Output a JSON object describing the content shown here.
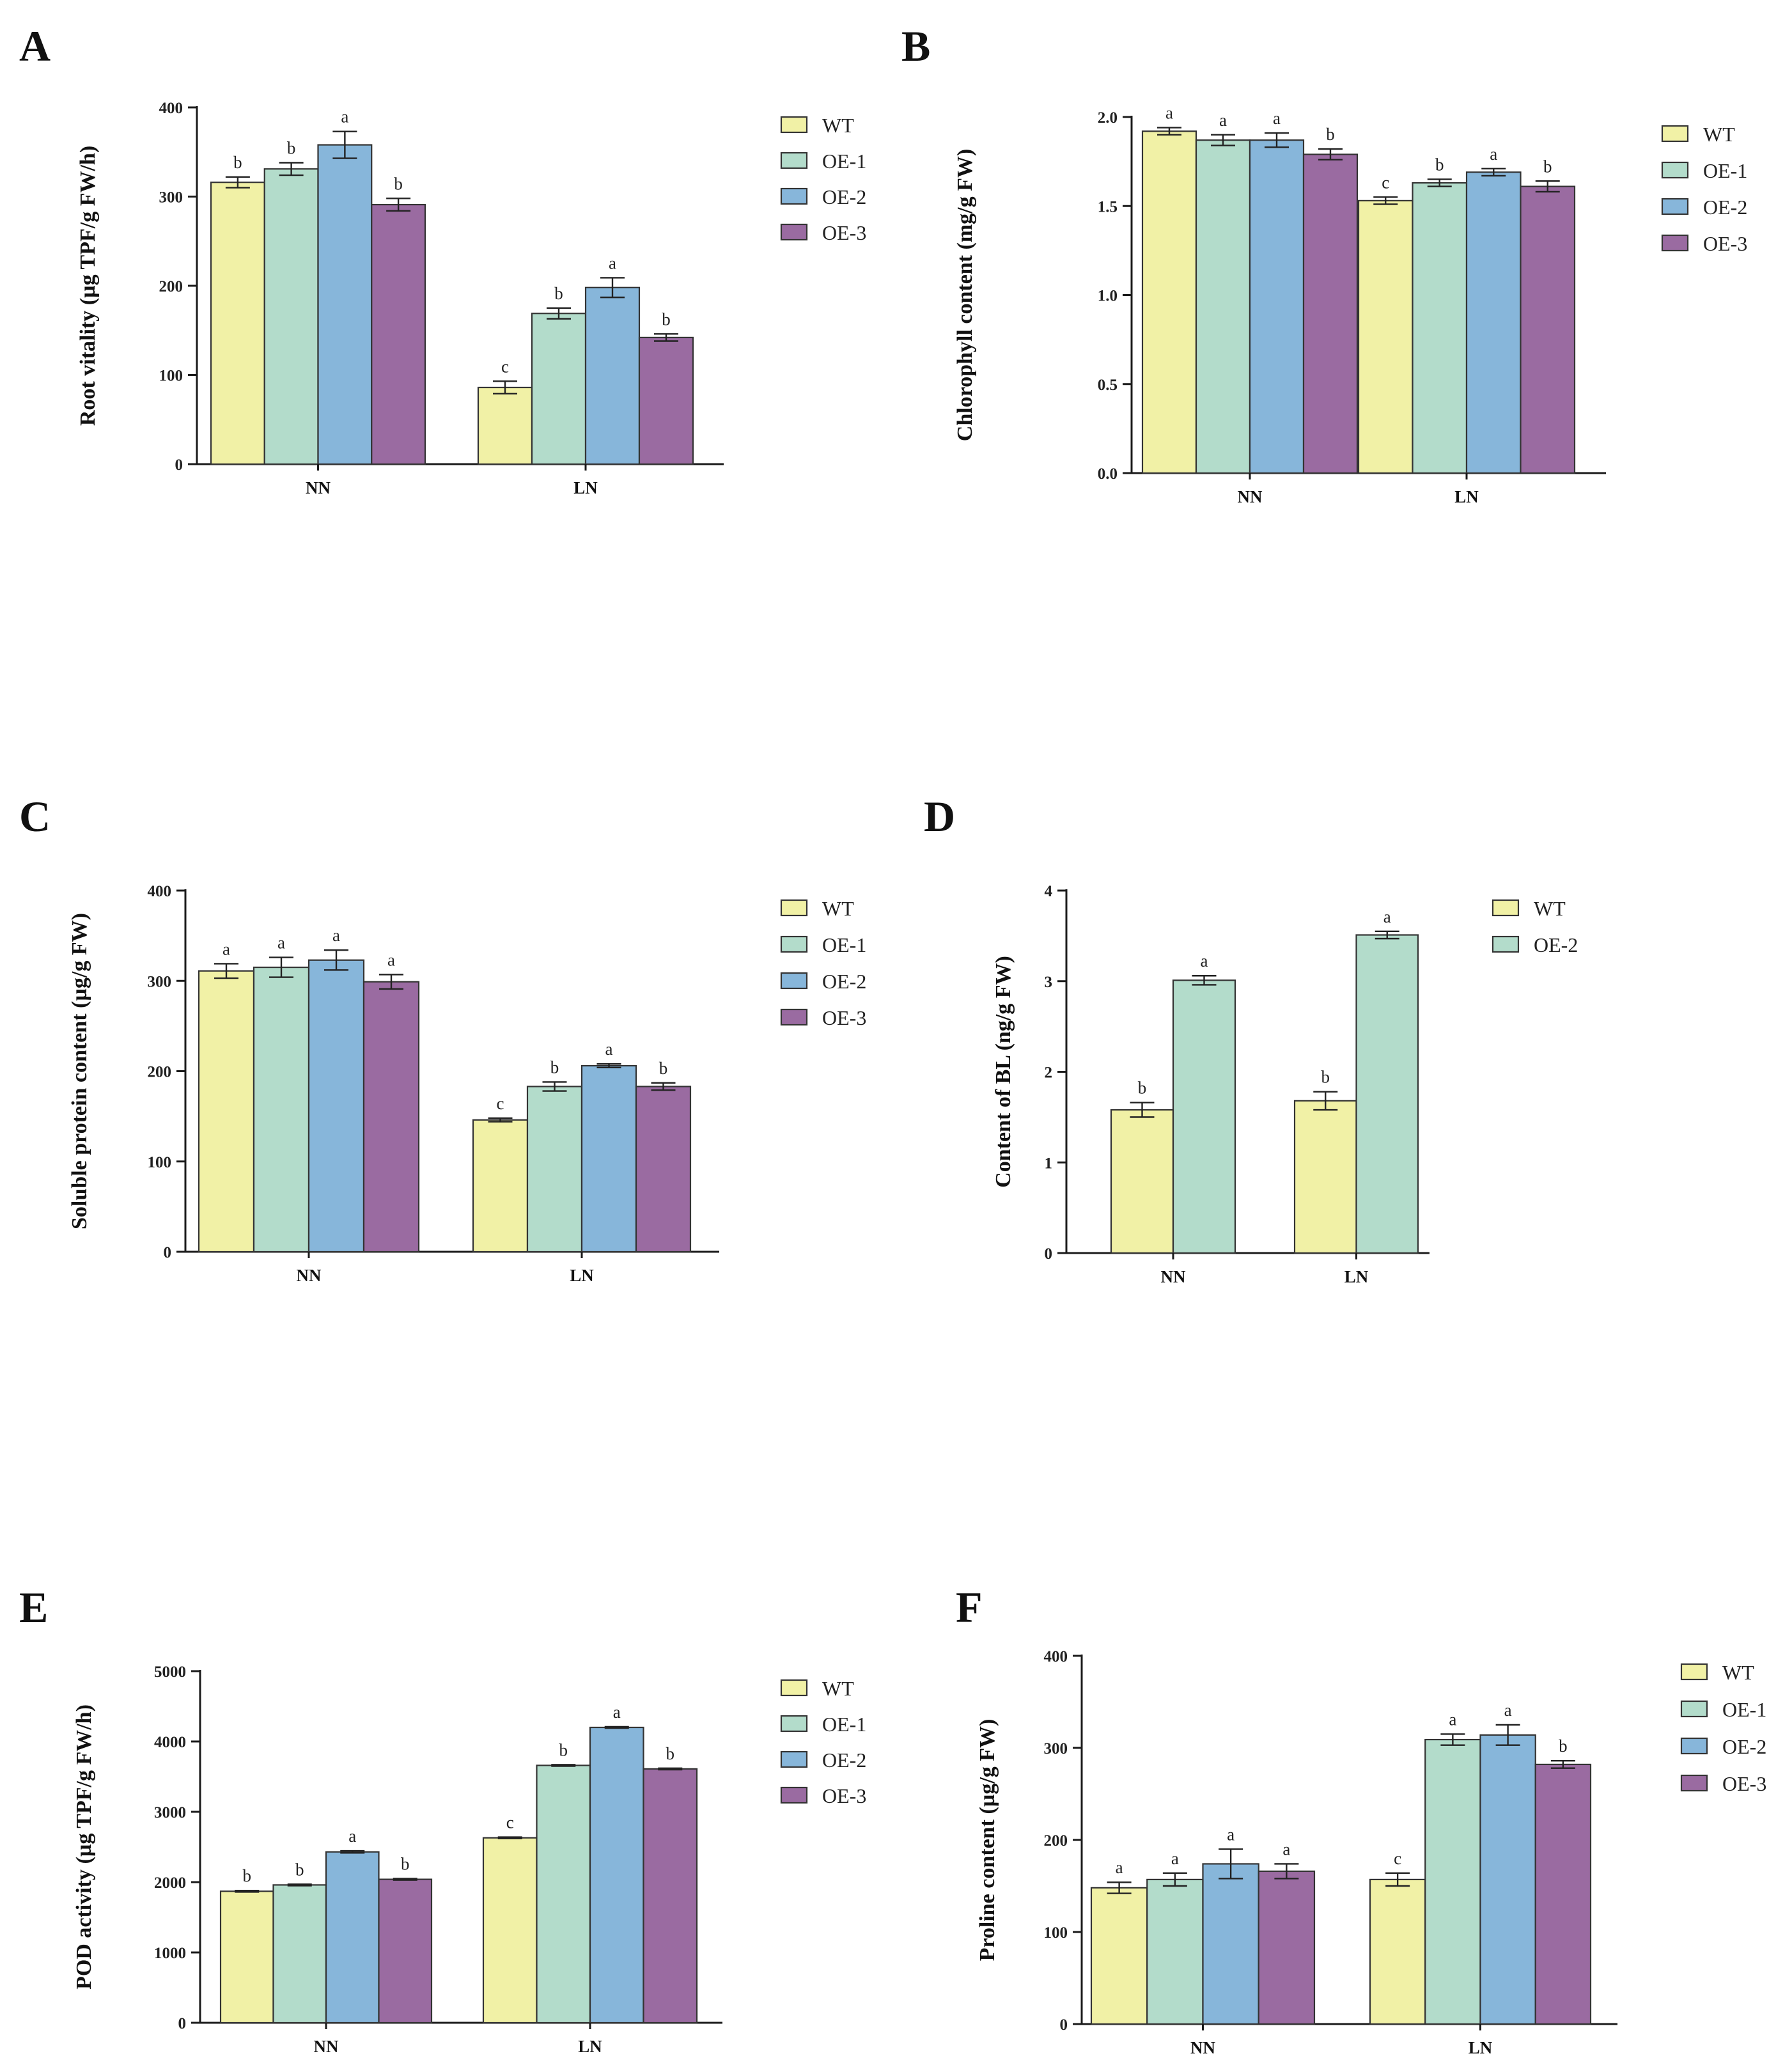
{
  "colors": {
    "WT": "#f1f1a6",
    "OE-1": "#b3dccb",
    "OE-2": "#87b6da",
    "OE-3": "#9a6ba1"
  },
  "chart_data": [
    {
      "panel": "A",
      "type": "bar",
      "ylabel": "Root vitality (µg TPF/g FW/h)",
      "categories": [
        "NN",
        "LN"
      ],
      "ylim": [
        0,
        400
      ],
      "yticks": [
        0,
        100,
        200,
        300,
        400
      ],
      "series": [
        {
          "name": "WT",
          "values": [
            316,
            86
          ],
          "errors": [
            6,
            7
          ],
          "letters": [
            "b",
            "c"
          ]
        },
        {
          "name": "OE-1",
          "values": [
            331,
            169
          ],
          "errors": [
            7,
            6
          ],
          "letters": [
            "b",
            "b"
          ]
        },
        {
          "name": "OE-2",
          "values": [
            358,
            198
          ],
          "errors": [
            15,
            11
          ],
          "letters": [
            "a",
            "a"
          ]
        },
        {
          "name": "OE-3",
          "values": [
            291,
            142
          ],
          "errors": [
            7,
            4
          ],
          "letters": [
            "b",
            "b"
          ]
        }
      ]
    },
    {
      "panel": "B",
      "type": "bar",
      "ylabel": "Chlorophyll content (mg/g FW)",
      "categories": [
        "NN",
        "LN"
      ],
      "ylim": [
        0,
        2.0
      ],
      "yticks": [
        "0.0",
        "0.5",
        "1.0",
        "1.5",
        "2.0"
      ],
      "series": [
        {
          "name": "WT",
          "values": [
            1.92,
            1.53
          ],
          "errors": [
            0.02,
            0.02
          ],
          "letters": [
            "a",
            "c"
          ]
        },
        {
          "name": "OE-1",
          "values": [
            1.87,
            1.63
          ],
          "errors": [
            0.03,
            0.02
          ],
          "letters": [
            "a",
            "b"
          ]
        },
        {
          "name": "OE-2",
          "values": [
            1.87,
            1.69
          ],
          "errors": [
            0.04,
            0.02
          ],
          "letters": [
            "a",
            "a"
          ]
        },
        {
          "name": "OE-3",
          "values": [
            1.79,
            1.61
          ],
          "errors": [
            0.03,
            0.03
          ],
          "letters": [
            "b",
            "b"
          ]
        }
      ]
    },
    {
      "panel": "C",
      "type": "bar",
      "ylabel": "Soluble protein content (µg/g FW)",
      "categories": [
        "NN",
        "LN"
      ],
      "ylim": [
        0,
        400
      ],
      "yticks": [
        0,
        100,
        200,
        300,
        400
      ],
      "series": [
        {
          "name": "WT",
          "values": [
            311,
            146
          ],
          "errors": [
            8,
            2
          ],
          "letters": [
            "a",
            "c"
          ]
        },
        {
          "name": "OE-1",
          "values": [
            315,
            183
          ],
          "errors": [
            11,
            5
          ],
          "letters": [
            "a",
            "b"
          ]
        },
        {
          "name": "OE-2",
          "values": [
            323,
            206
          ],
          "errors": [
            11,
            2
          ],
          "letters": [
            "a",
            "a"
          ]
        },
        {
          "name": "OE-3",
          "values": [
            299,
            183
          ],
          "errors": [
            8,
            4
          ],
          "letters": [
            "a",
            "b"
          ]
        }
      ]
    },
    {
      "panel": "D",
      "type": "bar",
      "ylabel": "Content of BL (ng/g FW)",
      "categories": [
        "NN",
        "LN"
      ],
      "ylim": [
        0,
        4
      ],
      "yticks": [
        0,
        1,
        2,
        3,
        4
      ],
      "series": [
        {
          "name": "WT",
          "values": [
            1.58,
            1.68
          ],
          "errors": [
            0.08,
            0.1
          ],
          "letters": [
            "b",
            "b"
          ]
        },
        {
          "name": "OE-2",
          "values": [
            3.01,
            3.51
          ],
          "errors": [
            0.05,
            0.04
          ],
          "letters": [
            "a",
            "a"
          ],
          "color": "#b3dccb"
        }
      ]
    },
    {
      "panel": "E",
      "type": "bar",
      "ylabel": "POD activity (µg TPF/g FW/h)",
      "categories": [
        "NN",
        "LN"
      ],
      "ylim": [
        0,
        5000
      ],
      "yticks": [
        0,
        1000,
        2000,
        3000,
        4000,
        5000
      ],
      "series": [
        {
          "name": "WT",
          "values": [
            1870,
            2630
          ],
          "errors": [
            10,
            10
          ],
          "letters": [
            "b",
            "c"
          ]
        },
        {
          "name": "OE-1",
          "values": [
            1960,
            3660
          ],
          "errors": [
            10,
            10
          ],
          "letters": [
            "b",
            "b"
          ]
        },
        {
          "name": "OE-2",
          "values": [
            2430,
            4200
          ],
          "errors": [
            15,
            10
          ],
          "letters": [
            "a",
            "a"
          ]
        },
        {
          "name": "OE-3",
          "values": [
            2040,
            3610
          ],
          "errors": [
            10,
            10
          ],
          "letters": [
            "b",
            "b"
          ]
        }
      ]
    },
    {
      "panel": "F",
      "type": "bar",
      "ylabel": "Proline content (µg/g FW)",
      "categories": [
        "NN",
        "LN"
      ],
      "ylim": [
        0,
        400
      ],
      "yticks": [
        0,
        100,
        200,
        300,
        400
      ],
      "series": [
        {
          "name": "WT",
          "values": [
            148,
            157
          ],
          "errors": [
            6,
            7
          ],
          "letters": [
            "a",
            "c"
          ]
        },
        {
          "name": "OE-1",
          "values": [
            157,
            309
          ],
          "errors": [
            7,
            6
          ],
          "letters": [
            "a",
            "a"
          ]
        },
        {
          "name": "OE-2",
          "values": [
            174,
            314
          ],
          "errors": [
            16,
            11
          ],
          "letters": [
            "a",
            "a"
          ]
        },
        {
          "name": "OE-3",
          "values": [
            166,
            282
          ],
          "errors": [
            8,
            4
          ],
          "letters": [
            "a",
            "b"
          ]
        }
      ]
    }
  ]
}
